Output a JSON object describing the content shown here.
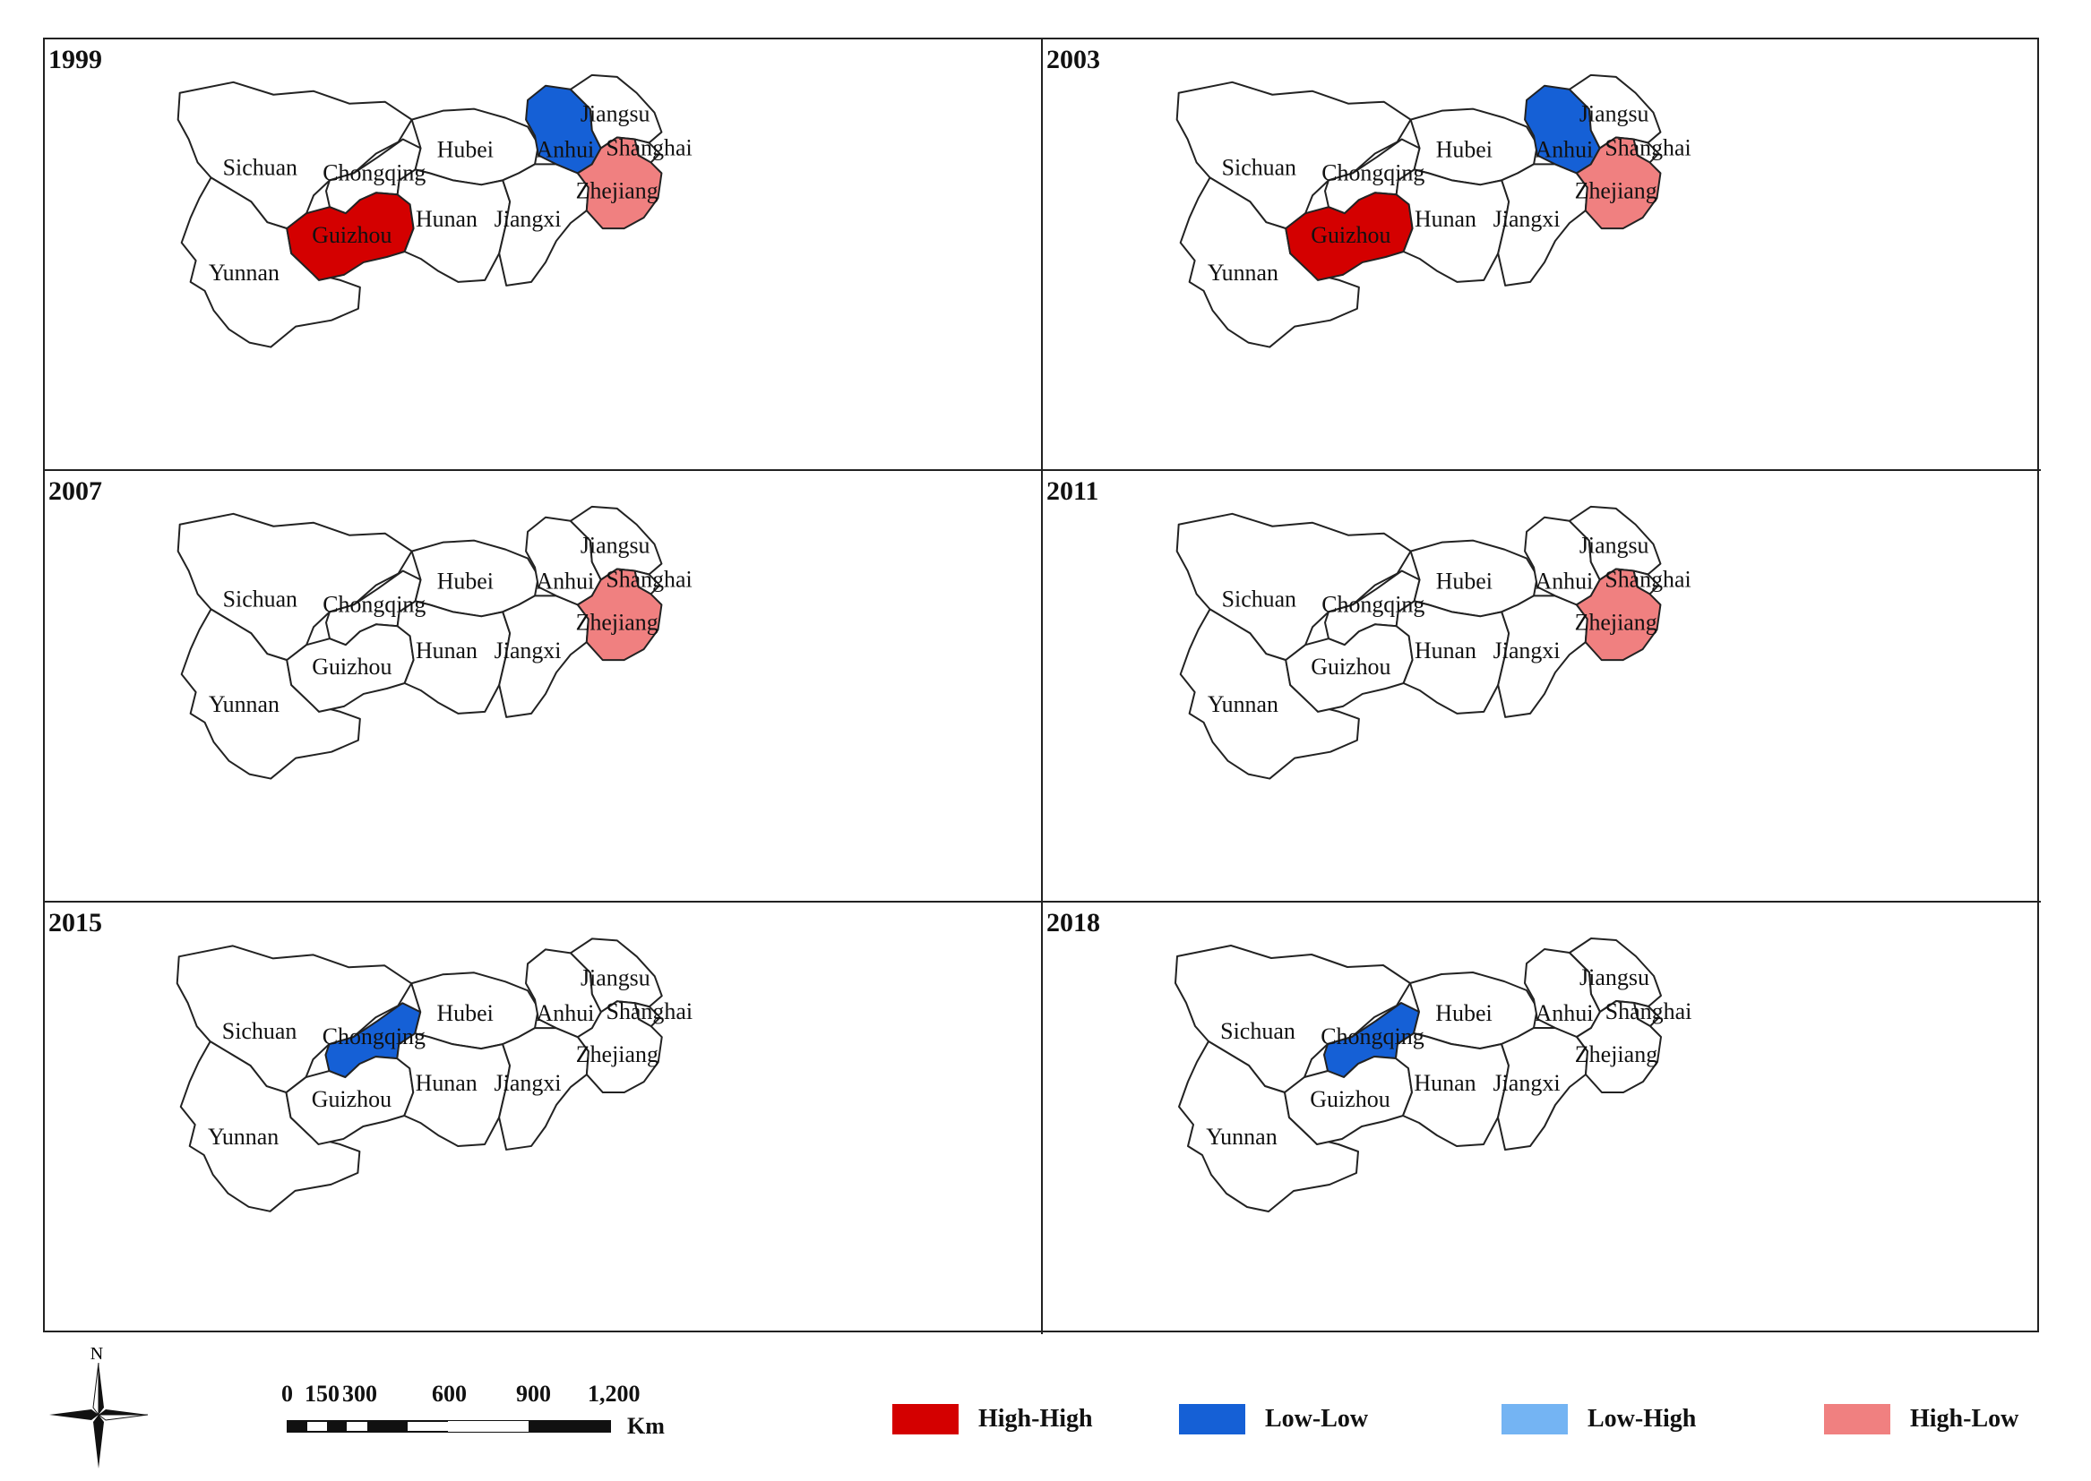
{
  "panels": [
    {
      "year": "1999",
      "highlights": {
        "Guizhou": "High-High",
        "Anhui": "Low-Low",
        "Zhejiang": "High-Low"
      }
    },
    {
      "year": "2003",
      "highlights": {
        "Guizhou": "High-High",
        "Anhui": "Low-Low",
        "Zhejiang": "High-Low"
      }
    },
    {
      "year": "2007",
      "highlights": {
        "Zhejiang": "High-Low"
      }
    },
    {
      "year": "2011",
      "highlights": {
        "Zhejiang": "High-Low"
      }
    },
    {
      "year": "2015",
      "highlights": {
        "Chongqing": "Low-Low"
      }
    },
    {
      "year": "2018",
      "highlights": {
        "Chongqing": "Low-Low"
      }
    }
  ],
  "provinces": [
    "Sichuan",
    "Chongqing",
    "Yunnan",
    "Guizhou",
    "Hubei",
    "Hunan",
    "Jiangxi",
    "Anhui",
    "Jiangsu",
    "Shanghai",
    "Zhejiang"
  ],
  "legend": [
    {
      "label": "High-High",
      "color": "#d40000"
    },
    {
      "label": "Low-Low",
      "color": "#1560d6"
    },
    {
      "label": "Low-High",
      "color": "#74b4f3"
    },
    {
      "label": "High-Low",
      "color": "#f08080"
    }
  ],
  "scale_bar": {
    "ticks": [
      "0",
      "150",
      "300",
      "600",
      "900",
      "1,200"
    ],
    "unit": "Km"
  },
  "north_label": "N"
}
